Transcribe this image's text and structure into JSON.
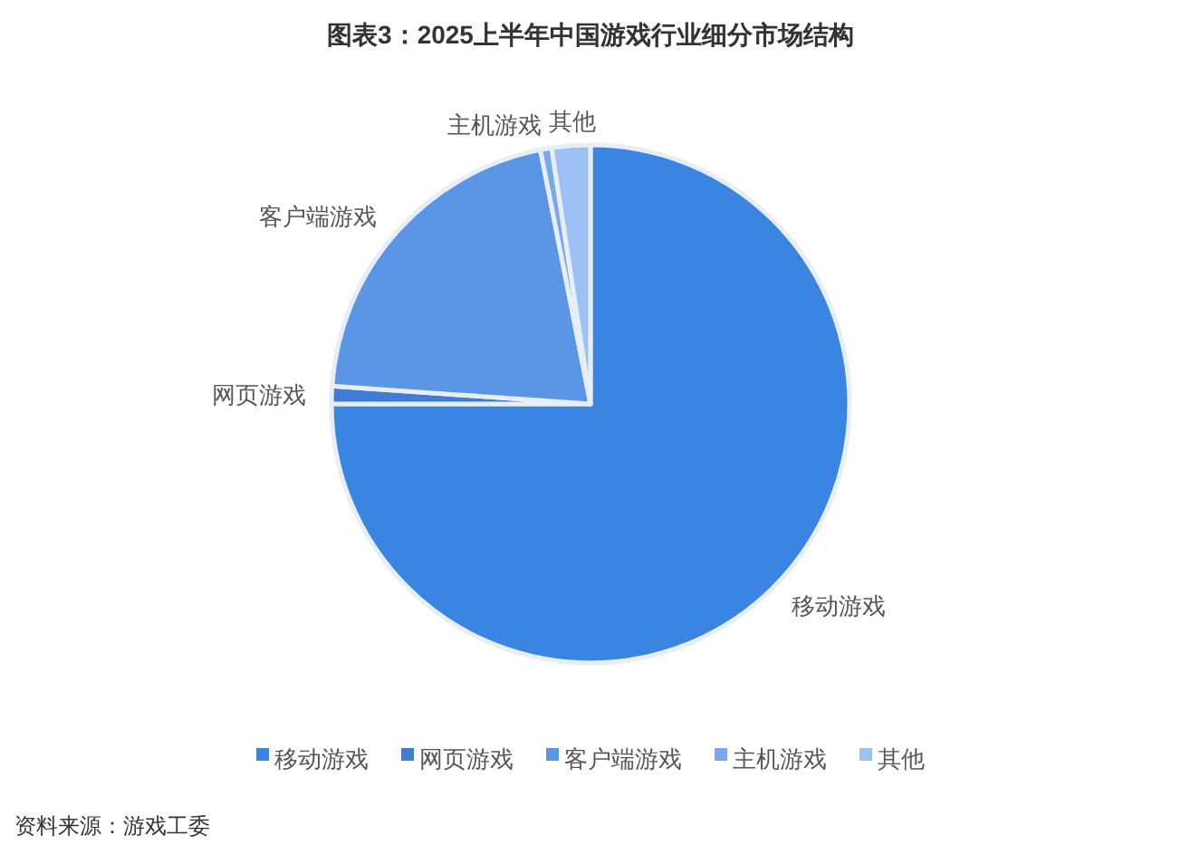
{
  "chart_data": {
    "type": "pie",
    "title": "图表3：2025上半年中国游戏行业细分市场结构",
    "categories": [
      "移动游戏",
      "网页游戏",
      "客户端游戏",
      "主机游戏",
      "其他"
    ],
    "values": [
      75.0,
      1.1,
      20.8,
      0.7,
      2.4
    ],
    "colors": [
      "#3a84e2",
      "#3f7dd4",
      "#5a96e5",
      "#79a8eb",
      "#9dc1f2"
    ],
    "legend": "bottom",
    "annotations": [
      "资料来源：游戏工委"
    ]
  }
}
